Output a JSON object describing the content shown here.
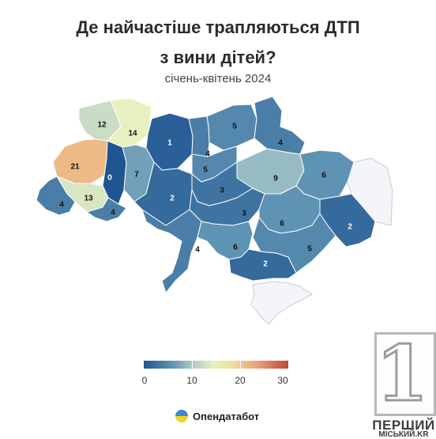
{
  "title_line1": "Де найчастіше трапляються ДТП",
  "title_line2": "з вини дітей?",
  "subtitle": "січень-квітень 2024",
  "legend": {
    "ticks": [
      "0",
      "10",
      "20",
      "30"
    ],
    "min": 0,
    "max": 30
  },
  "brand": {
    "label": "Опендатабот"
  },
  "logo": {
    "digit": "1",
    "line1": "ПЕРШИЙ",
    "line2": "МІСЬКИЙ.KR"
  },
  "regions": [
    {
      "id": "volyn",
      "value": 12
    },
    {
      "id": "rivne",
      "value": 14
    },
    {
      "id": "zhytomyr",
      "value": 1
    },
    {
      "id": "kyiv-oblast",
      "value": 4
    },
    {
      "id": "chernihiv",
      "value": 5
    },
    {
      "id": "sumy",
      "value": 4
    },
    {
      "id": "lviv",
      "value": 21
    },
    {
      "id": "ternopil",
      "value": 0
    },
    {
      "id": "khmelnytskyi",
      "value": 7
    },
    {
      "id": "kyiv-oblast-south",
      "value": 5
    },
    {
      "id": "poltava",
      "value": 9
    },
    {
      "id": "kharkiv",
      "value": 6
    },
    {
      "id": "zakarpattia",
      "value": 4
    },
    {
      "id": "ivano-frankivsk",
      "value": 13
    },
    {
      "id": "chernivtsi",
      "value": 4
    },
    {
      "id": "vinnytsia",
      "value": 2
    },
    {
      "id": "cherkasy",
      "value": 3
    },
    {
      "id": "kirovohrad",
      "value": 3
    },
    {
      "id": "dnipropetrovsk",
      "value": 6
    },
    {
      "id": "donetsk",
      "value": 2
    },
    {
      "id": "odesa",
      "value": 4
    },
    {
      "id": "mykolaiv",
      "value": 6
    },
    {
      "id": "kherson",
      "value": 2
    },
    {
      "id": "zaporizhzhia",
      "value": 5
    }
  ],
  "no_data": [
    "luhansk",
    "crimea"
  ]
}
